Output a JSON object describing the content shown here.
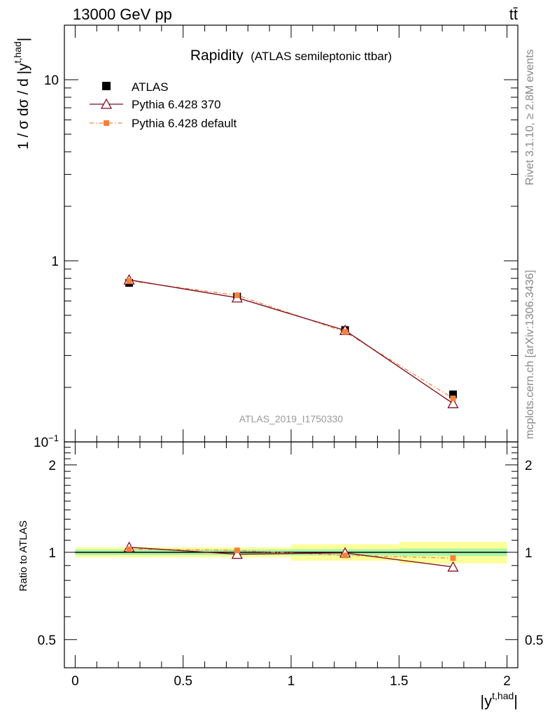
{
  "header": {
    "energy_label": "13000 GeV pp",
    "process_label": "tt̄",
    "side_label_top": "Rivet 3.1.10, ≥ 2.8M events",
    "side_label_bottom": "mcplots.cern.ch [arXiv:1306.3436]"
  },
  "colors": {
    "atlas": "#000000",
    "pythia370": "#7f0f1f",
    "pythia_default": "#f5823c",
    "band_inner": "#aaf5aa",
    "band_outer": "#ffff99",
    "watermark": "#999999"
  },
  "chart_data": [
    {
      "type": "line",
      "panel": "main",
      "title": "Rapidity",
      "subtitle": "(ATLAS semileptonic ttbar)",
      "watermark": "ATLAS_2019_I1750330",
      "ylabel": "1 / σ dσ / d |y^{t,had}|",
      "ylabel_main": "1 / σ dσ / d |y",
      "ylabel_sup": "t,had",
      "ylabel_close": "|",
      "yscale": "log",
      "ylim": [
        0.1,
        20
      ],
      "xlim": [
        -0.05,
        2.05
      ],
      "y_tick_labels": [
        {
          "value": 10,
          "label": "10"
        },
        {
          "value": 1,
          "label": "1"
        },
        {
          "value": 0.1,
          "label": "10",
          "sup": "−1"
        }
      ],
      "x": [
        0.25,
        0.75,
        1.25,
        1.75
      ],
      "series": [
        {
          "name": "ATLAS",
          "marker": "square",
          "values": [
            0.755,
            0.635,
            0.415,
            0.183
          ]
        },
        {
          "name": "Pythia 6.428 370",
          "marker": "open-triangle",
          "values": [
            0.785,
            0.625,
            0.413,
            0.163
          ]
        },
        {
          "name": "Pythia 6.428 default",
          "marker": "small-square",
          "line": "dash-dot",
          "values": [
            0.775,
            0.645,
            0.405,
            0.174
          ]
        }
      ],
      "legend": [
        "ATLAS",
        "Pythia 6.428 370",
        "Pythia 6.428 default"
      ],
      "legend_position": "top-left"
    },
    {
      "type": "line",
      "panel": "ratio",
      "ylabel": "Ratio to ATLAS",
      "xlabel": "|y^{t,had}|",
      "xlabel_main": "|y",
      "xlabel_sup": "t,had",
      "xlabel_close": "|",
      "yscale": "log",
      "ylim": [
        0.4,
        2.4
      ],
      "xlim": [
        -0.05,
        2.05
      ],
      "y_tick_labels": [
        "2",
        "1",
        "0.5"
      ],
      "y_tick_values": [
        2,
        1,
        0.5
      ],
      "x_tick_labels": [
        "0",
        "0.5",
        "1",
        "1.5",
        "2"
      ],
      "x_tick_values": [
        0,
        0.5,
        1,
        1.5,
        2
      ],
      "bins": [
        [
          0,
          0.5
        ],
        [
          0.5,
          1
        ],
        [
          1,
          1.5
        ],
        [
          1.5,
          2
        ]
      ],
      "band_inner": [
        0.022,
        0.022,
        0.025,
        0.03
      ],
      "band_outer": [
        0.04,
        0.04,
        0.065,
        0.085
      ],
      "x": [
        0.25,
        0.75,
        1.25,
        1.75
      ],
      "series": [
        {
          "name": "Pythia 6.428 370",
          "values": [
            1.04,
            0.985,
            0.995,
            0.89
          ]
        },
        {
          "name": "Pythia 6.428 default",
          "values": [
            1.025,
            1.015,
            0.975,
            0.955
          ]
        }
      ]
    }
  ]
}
